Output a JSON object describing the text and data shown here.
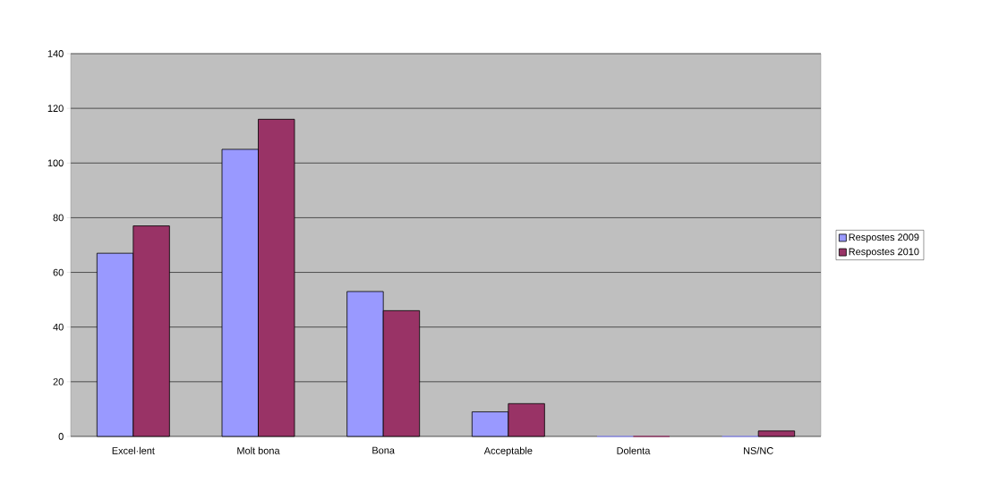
{
  "chart_data": {
    "type": "bar",
    "categories": [
      "Excel·lent",
      "Molt bona",
      "Bona",
      "Acceptable",
      "Dolenta",
      "NS/NC"
    ],
    "series": [
      {
        "name": "Respostes 2009",
        "color": "#9999ff",
        "values": [
          67,
          105,
          53,
          9,
          0,
          0
        ]
      },
      {
        "name": "Respostes 2010",
        "color": "#993366",
        "values": [
          77,
          116,
          46,
          12,
          0,
          2
        ]
      }
    ],
    "ylim": [
      0,
      140
    ],
    "yticks": [
      0,
      20,
      40,
      60,
      80,
      100,
      120,
      140
    ],
    "grid": "y",
    "legend": "right"
  }
}
